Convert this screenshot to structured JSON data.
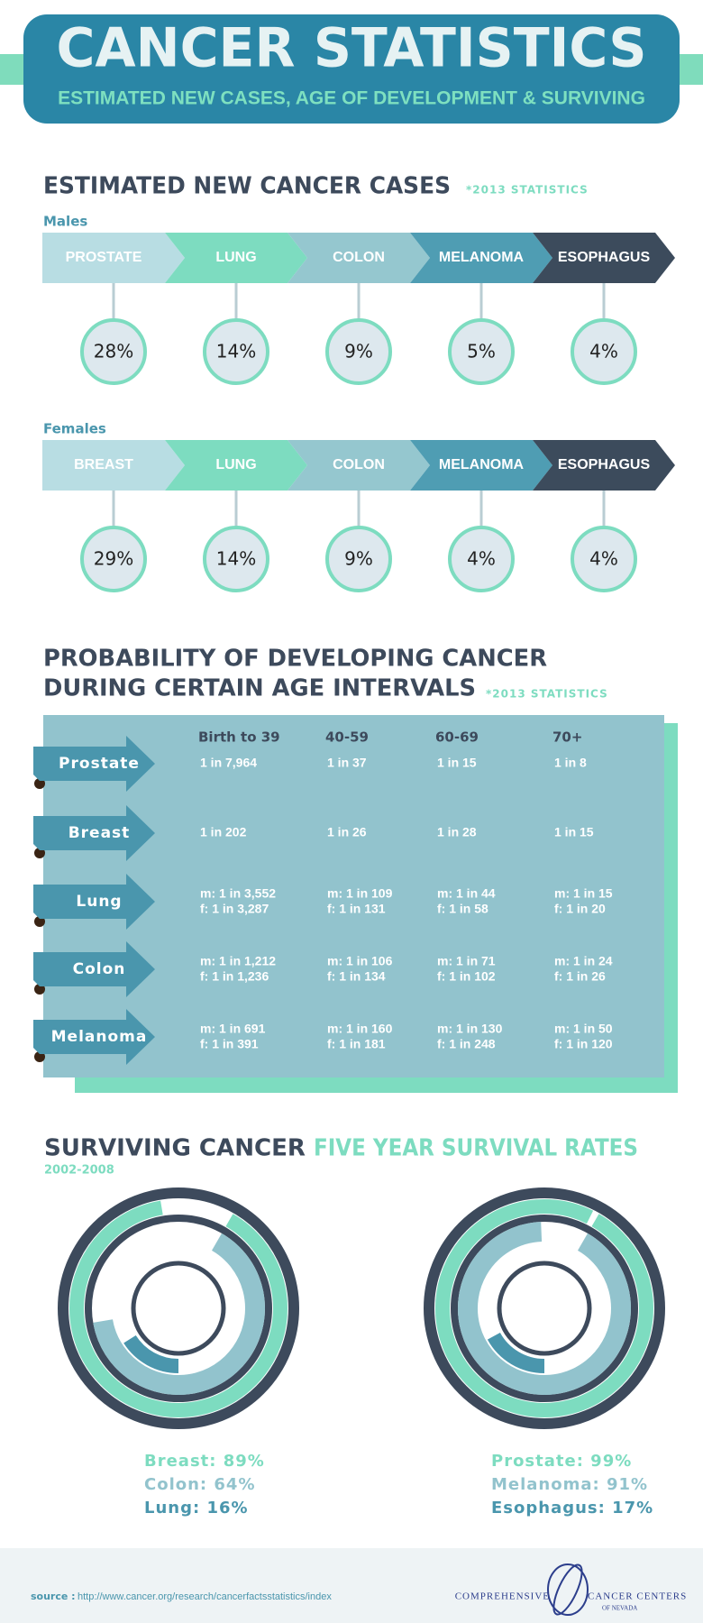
{
  "header": {
    "title": "CANCER STATISTICS",
    "subtitle": "ESTIMATED NEW CASES, AGE OF DEVELOPMENT & SURVIVING"
  },
  "new_cases": {
    "title": "ESTIMATED NEW CANCER CASES",
    "note": "*2013 STATISTICS",
    "groups": [
      {
        "label": "Males",
        "items": [
          {
            "name": "PROSTATE",
            "share": "28%"
          },
          {
            "name": "LUNG",
            "share": "14%"
          },
          {
            "name": "COLON",
            "share": "9%"
          },
          {
            "name": "MELANOMA",
            "share": "5%"
          },
          {
            "name": "ESOPHAGUS",
            "share": "4%"
          }
        ]
      },
      {
        "label": "Females",
        "items": [
          {
            "name": "BREAST",
            "share": "29%"
          },
          {
            "name": "LUNG",
            "share": "14%"
          },
          {
            "name": "COLON",
            "share": "9%"
          },
          {
            "name": "MELANOMA",
            "share": "4%"
          },
          {
            "name": "ESOPHAGUS",
            "share": "4%"
          }
        ]
      }
    ]
  },
  "probability": {
    "title_lines": [
      "PROBABILITY OF DEVELOPING CANCER",
      "DURING CERTAIN AGE INTERVALS"
    ],
    "note": "*2013 STATISTICS",
    "columns": [
      "Birth to 39",
      "40-59",
      "60-69",
      "70+"
    ],
    "rows": [
      {
        "name": "Prostate",
        "cells": [
          [
            "1 in 7,964"
          ],
          [
            "1 in 37"
          ],
          [
            "1 in 15"
          ],
          [
            "1 in 8"
          ]
        ]
      },
      {
        "name": "Breast",
        "cells": [
          [
            "1 in 202"
          ],
          [
            "1 in 26"
          ],
          [
            "1 in 28"
          ],
          [
            "1 in 15"
          ]
        ]
      },
      {
        "name": "Lung",
        "cells": [
          [
            "m: 1 in 3,552",
            "f:   1 in 3,287"
          ],
          [
            "m: 1 in 109",
            "f:   1 in 131"
          ],
          [
            "m: 1 in 44",
            "f:   1 in 58"
          ],
          [
            "m: 1 in 15",
            "f:   1 in 20"
          ]
        ]
      },
      {
        "name": "Colon",
        "cells": [
          [
            "m: 1 in 1,212",
            "f:   1 in 1,236"
          ],
          [
            "m: 1 in 106",
            "f:   1 in 134"
          ],
          [
            "m: 1 in 71",
            "f:   1 in 102"
          ],
          [
            "m: 1 in 24",
            "f:   1 in 26"
          ]
        ]
      },
      {
        "name": "Melanoma",
        "cells": [
          [
            "m: 1 in 691",
            "f:   1 in 391"
          ],
          [
            "m: 1 in 160",
            "f:   1 in 181"
          ],
          [
            "m: 1 in 130",
            "f:   1 in 248"
          ],
          [
            "m: 1 in 50",
            "f:   1 in 120"
          ]
        ]
      }
    ]
  },
  "survival": {
    "title": "SURVIVING CANCER",
    "title_accent": "FIVE YEAR SURVIVAL RATES",
    "period": "2002-2008",
    "charts": [
      {
        "rings": [
          {
            "label": "Breast: 89%",
            "value": 89,
            "color": "#7ddcc0"
          },
          {
            "label": "Colon: 64%",
            "value": 64,
            "color": "#92c3cd"
          },
          {
            "label": "Lung: 16%",
            "value": 16,
            "color": "#4a96ad"
          }
        ]
      },
      {
        "rings": [
          {
            "label": "Prostate: 99%",
            "value": 99,
            "color": "#7ddcc0"
          },
          {
            "label": "Melanoma: 91%",
            "value": 91,
            "color": "#92c3cd"
          },
          {
            "label": "Esophagus: 17%",
            "value": 17,
            "color": "#4a96ad"
          }
        ]
      }
    ]
  },
  "footer": {
    "source_label": "source :",
    "source_url": "http://www.cancer.org/research/cancerfactsstatistics/index",
    "logo_left": "COMPREHENSIVE",
    "logo_right": "CANCER CENTERS",
    "logo_sub": "OF NEVADA"
  }
}
